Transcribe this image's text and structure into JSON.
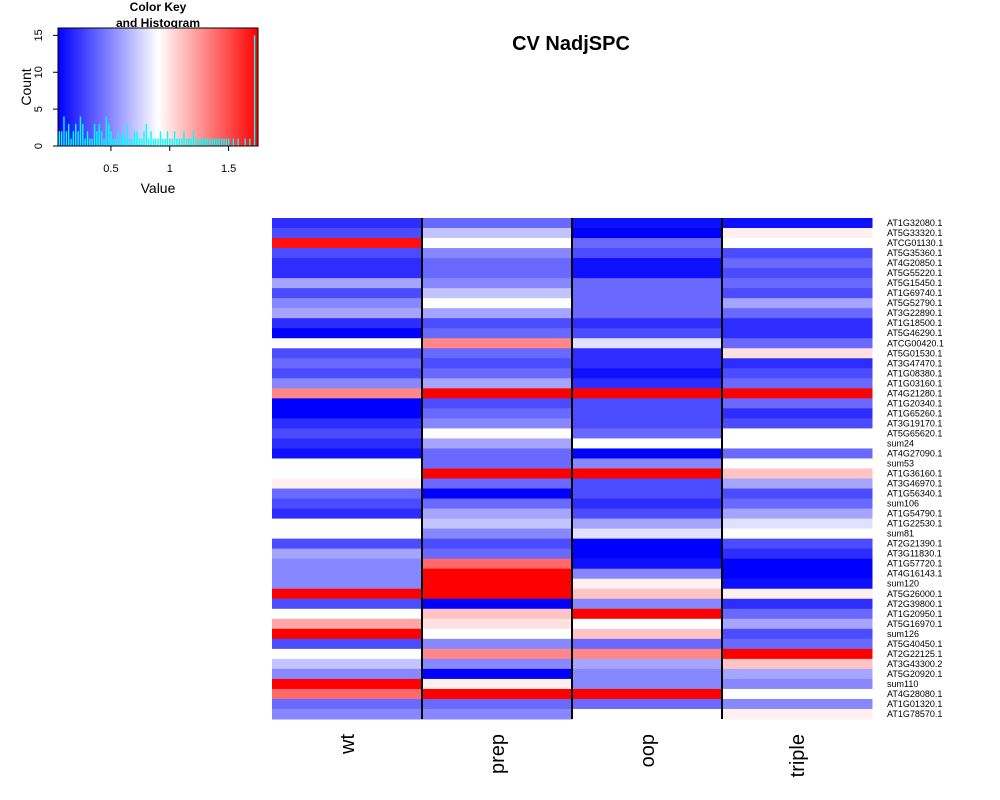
{
  "chart_data": [
    {
      "type": "heatmap",
      "title": "CV NadjSPC",
      "columns": [
        "wt",
        "prep",
        "oop",
        "triple"
      ],
      "rows": [
        "AT1G32080.1",
        "AT5G33320.1",
        "ATCG01130.1",
        "AT5G35360.1",
        "AT4G20850.1",
        "AT5G55220.1",
        "AT5G15450.1",
        "AT1G69740.1",
        "AT5G52790.1",
        "AT3G22890.1",
        "AT1G18500.1",
        "AT5G46290.1",
        "ATCG00420.1",
        "AT5G01530.1",
        "AT3G47470.1",
        "AT1G08380.1",
        "AT1G03160.1",
        "AT4G21280.1",
        "AT1G20340.1",
        "AT1G65260.1",
        "AT3G19170.1",
        "AT5G65620.1",
        "sum24",
        "AT4G27090.1",
        "sum53",
        "AT1G36160.1",
        "AT3G46970.1",
        "AT1G56340.1",
        "sum106",
        "AT1G54790.1",
        "AT1G22530.1",
        "sum81",
        "AT2G21390.1",
        "AT3G11830.1",
        "AT1G57720.1",
        "AT4G16143.1",
        "sum120",
        "AT5G26000.1",
        "AT2G39800.1",
        "AT1G20950.1",
        "AT5G16970.1",
        "sum126",
        "AT5G40450.1",
        "AT2G22125.1",
        "AT3G43300.2",
        "AT5G20920.1",
        "sum110",
        "AT4G28080.1",
        "AT1G01320.1",
        "AT1G78570.1"
      ],
      "value_range": [
        0.05,
        1.75
      ],
      "colors": {
        "low": "#0000ff",
        "mid": "#ffffff",
        "high": "#ff0000"
      },
      "values": [
        [
          0.2,
          0.4,
          0.1,
          0.1
        ],
        [
          0.3,
          0.7,
          0.05,
          0.95
        ],
        [
          1.7,
          0.9,
          0.4,
          0.9
        ],
        [
          0.3,
          0.5,
          0.3,
          0.3
        ],
        [
          0.2,
          0.4,
          0.1,
          0.4
        ],
        [
          0.2,
          0.4,
          0.1,
          0.3
        ],
        [
          0.6,
          0.5,
          0.4,
          0.4
        ],
        [
          0.3,
          0.7,
          0.4,
          0.3
        ],
        [
          0.5,
          0.9,
          0.4,
          0.6
        ],
        [
          0.6,
          0.6,
          0.4,
          0.4
        ],
        [
          0.2,
          0.3,
          0.2,
          0.2
        ],
        [
          0.05,
          0.4,
          0.3,
          0.2
        ],
        [
          0.9,
          1.3,
          0.8,
          0.4
        ],
        [
          0.3,
          0.4,
          0.2,
          1.0
        ],
        [
          0.4,
          0.3,
          0.2,
          0.2
        ],
        [
          0.3,
          0.4,
          0.1,
          0.3
        ],
        [
          0.5,
          0.6,
          0.2,
          0.4
        ],
        [
          1.3,
          1.75,
          1.75,
          1.75
        ],
        [
          0.05,
          0.3,
          0.3,
          0.4
        ],
        [
          0.05,
          0.4,
          0.3,
          0.2
        ],
        [
          0.2,
          0.5,
          0.3,
          0.3
        ],
        [
          0.3,
          0.9,
          0.4,
          0.9
        ],
        [
          0.2,
          0.6,
          0.9,
          0.9
        ],
        [
          0.1,
          0.4,
          0.05,
          0.4
        ],
        [
          0.9,
          0.4,
          0.5,
          0.9
        ],
        [
          0.9,
          1.75,
          1.75,
          1.1
        ],
        [
          0.95,
          0.4,
          0.3,
          0.6
        ],
        [
          0.4,
          0.05,
          0.3,
          0.3
        ],
        [
          0.3,
          0.4,
          0.2,
          0.4
        ],
        [
          0.2,
          0.6,
          0.3,
          0.6
        ],
        [
          0.9,
          0.7,
          0.6,
          0.8
        ],
        [
          0.9,
          0.5,
          0.8,
          0.9
        ],
        [
          0.3,
          0.3,
          0.05,
          0.3
        ],
        [
          0.6,
          0.4,
          0.05,
          0.2
        ],
        [
          0.5,
          1.4,
          0.1,
          0.05
        ],
        [
          0.5,
          1.75,
          0.5,
          0.05
        ],
        [
          0.5,
          1.75,
          0.95,
          0.1
        ],
        [
          1.75,
          1.75,
          1.1,
          0.95
        ],
        [
          0.3,
          0.05,
          0.5,
          0.2
        ],
        [
          0.9,
          1.1,
          1.75,
          0.4
        ],
        [
          1.2,
          1.0,
          0.9,
          0.6
        ],
        [
          1.75,
          0.9,
          1.1,
          0.3
        ],
        [
          0.3,
          0.5,
          0.4,
          0.4
        ],
        [
          0.9,
          1.3,
          1.3,
          1.75
        ],
        [
          0.7,
          0.5,
          0.6,
          1.1
        ],
        [
          0.5,
          0.05,
          0.5,
          0.6
        ],
        [
          1.75,
          0.95,
          0.5,
          0.5
        ],
        [
          1.4,
          1.75,
          1.75,
          0.9
        ],
        [
          0.4,
          0.4,
          0.4,
          0.5
        ],
        [
          0.5,
          0.5,
          0.9,
          0.95
        ]
      ]
    },
    {
      "type": "bar",
      "title": "Color Key\nand Histogram",
      "xlabel": "Value",
      "ylabel": "Count",
      "xticks": [
        "0.5",
        "1",
        "1.5"
      ],
      "yticks": [
        "0",
        "5",
        "10",
        "15"
      ],
      "xlim": [
        0.05,
        1.75
      ],
      "ylim": [
        0,
        16
      ],
      "bar_color": "#00ffff",
      "x": [
        0.06,
        0.08,
        0.1,
        0.12,
        0.14,
        0.16,
        0.18,
        0.2,
        0.22,
        0.24,
        0.26,
        0.28,
        0.3,
        0.32,
        0.34,
        0.36,
        0.38,
        0.4,
        0.42,
        0.44,
        0.46,
        0.48,
        0.5,
        0.52,
        0.54,
        0.56,
        0.58,
        0.6,
        0.62,
        0.64,
        0.66,
        0.68,
        0.7,
        0.72,
        0.74,
        0.76,
        0.78,
        0.8,
        0.82,
        0.84,
        0.86,
        0.88,
        0.9,
        0.92,
        0.94,
        0.96,
        0.98,
        1.0,
        1.02,
        1.04,
        1.06,
        1.08,
        1.1,
        1.12,
        1.14,
        1.16,
        1.18,
        1.2,
        1.22,
        1.24,
        1.26,
        1.28,
        1.3,
        1.32,
        1.34,
        1.36,
        1.38,
        1.4,
        1.42,
        1.44,
        1.46,
        1.48,
        1.5,
        1.52,
        1.54,
        1.56,
        1.58,
        1.6,
        1.62,
        1.64,
        1.66,
        1.68,
        1.7,
        1.72
      ],
      "counts": [
        2,
        2,
        4,
        2,
        3,
        1,
        2,
        3,
        2,
        4,
        3,
        1,
        2,
        1,
        1,
        3,
        2,
        3,
        2,
        1,
        4,
        3,
        2,
        1,
        1,
        2,
        1,
        2,
        1,
        3,
        1,
        1,
        2,
        2,
        1,
        1,
        2,
        3,
        1,
        2,
        1,
        1,
        1,
        2,
        1,
        1,
        2,
        1,
        1,
        2,
        1,
        1,
        1,
        2,
        1,
        1,
        1,
        2,
        1,
        1,
        1,
        1,
        1,
        1,
        1,
        1,
        1,
        1,
        1,
        1,
        1,
        1,
        1,
        0,
        1,
        0,
        1,
        0,
        0,
        1,
        0,
        1,
        0,
        15
      ]
    }
  ]
}
